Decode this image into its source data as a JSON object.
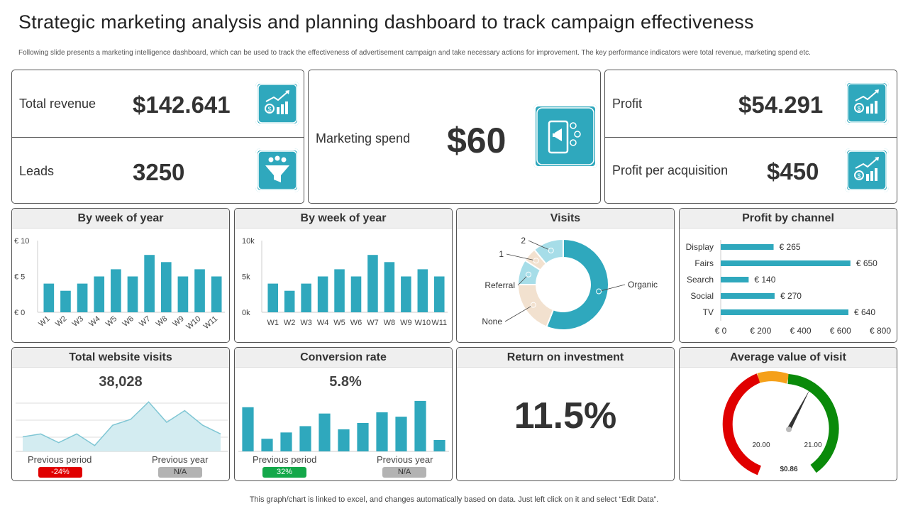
{
  "title": "Strategic marketing analysis and planning dashboard to track campaign effectiveness",
  "subtitle": "Following slide presents a marketing intelligence dashboard, which can be used to track the effectiveness of advertisement campaign and take necessary actions for improvement. The key performance indicators were total revenue, marketing spend etc.",
  "kpis": {
    "total_revenue": {
      "label": "Total revenue",
      "value": "$142.641"
    },
    "leads": {
      "label": "Leads",
      "value": "3250"
    },
    "marketing_spend": {
      "label": "Marketing spend",
      "value": "$60"
    },
    "profit": {
      "label": "Profit",
      "value": "$54.291"
    },
    "profit_per_acquisition": {
      "label": "Profit per acquisition",
      "value": "$450"
    }
  },
  "panels": {
    "week1_title": "By week of year",
    "week2_title": "By week of year",
    "visits_title": "Visits",
    "channel_title": "Profit by channel",
    "website_title": "Total website visits",
    "conversion_title": "Conversion rate",
    "roi_title": "Return on investment",
    "avg_title": "Average value of visit"
  },
  "website": {
    "value": "38,028",
    "prev_label": "Previous period",
    "year_label": "Previous year",
    "prev_badge": "-24%",
    "year_badge": "N/A"
  },
  "conversion": {
    "value": "5.8%",
    "prev_label": "Previous period",
    "year_label": "Previous year",
    "prev_badge": "32%",
    "year_badge": "N/A"
  },
  "roi": {
    "value": "11.5%"
  },
  "gauge": {
    "left_label": "20.00",
    "right_label": "21.00",
    "value_label": "$0.86"
  },
  "colors": {
    "teal": "#2fa8bd",
    "light_teal": "#a6dde8",
    "beige": "#f2e1cf",
    "red": "#e00000",
    "orange": "#f5a01a",
    "green": "#0a8a0a",
    "gray": "#b3b3b3",
    "badge_green": "#14a84a"
  },
  "footer": "This graph/chart is linked to excel, and changes automatically based on data. Just left click on it and select “Edit Data”.",
  "chart_data": [
    {
      "id": "week_euro",
      "type": "bar",
      "title": "By week of year",
      "categories": [
        "W1",
        "W2",
        "W3",
        "W4",
        "W5",
        "W6",
        "W7",
        "W8",
        "W9",
        "W10",
        "W11"
      ],
      "values": [
        4,
        3,
        4,
        5,
        6,
        5,
        8,
        7,
        5,
        6,
        5
      ],
      "yticks": [
        "€ 0",
        "€ 5",
        "€ 10"
      ],
      "ylim": [
        0,
        10
      ]
    },
    {
      "id": "week_k",
      "type": "bar",
      "title": "By week of year",
      "categories": [
        "W1",
        "W2",
        "W3",
        "W4",
        "W5",
        "W6",
        "W7",
        "W8",
        "W9",
        "W10",
        "W11"
      ],
      "values": [
        4000,
        3000,
        4000,
        5000,
        6000,
        5000,
        8000,
        7000,
        5000,
        6000,
        5000
      ],
      "yticks": [
        "0k",
        "5k",
        "10k"
      ],
      "ylim": [
        0,
        10000
      ]
    },
    {
      "id": "visits",
      "type": "pie",
      "title": "Visits",
      "labels": [
        "Organic",
        "None",
        "Referral",
        "1",
        "2"
      ],
      "values": [
        56,
        19,
        9,
        5,
        11
      ]
    },
    {
      "id": "profit_channel",
      "type": "bar",
      "orientation": "horizontal",
      "title": "Profit by channel",
      "categories": [
        "Display",
        "Fairs",
        "Search",
        "Social",
        "TV"
      ],
      "values": [
        265,
        650,
        140,
        270,
        640
      ],
      "value_labels": [
        "€ 265",
        "€ 650",
        "€ 140",
        "€ 270",
        "€ 640"
      ],
      "xticks": [
        "€ 0",
        "€ 200",
        "€ 400",
        "€ 600",
        "€ 800"
      ],
      "xlim": [
        0,
        800
      ]
    },
    {
      "id": "website_visits",
      "type": "area",
      "title": "Total website visits",
      "values": [
        2.5,
        3,
        1.5,
        3,
        1,
        4.5,
        5.5,
        8.5,
        5,
        7,
        4.5,
        3
      ],
      "ylim": [
        0,
        10
      ]
    },
    {
      "id": "conversion_rate",
      "type": "bar",
      "title": "Conversion rate",
      "values": [
        7,
        2,
        3,
        4,
        6,
        3.5,
        4.5,
        6.2,
        5.5,
        8,
        1.8
      ],
      "ylim": [
        0,
        9
      ]
    }
  ]
}
